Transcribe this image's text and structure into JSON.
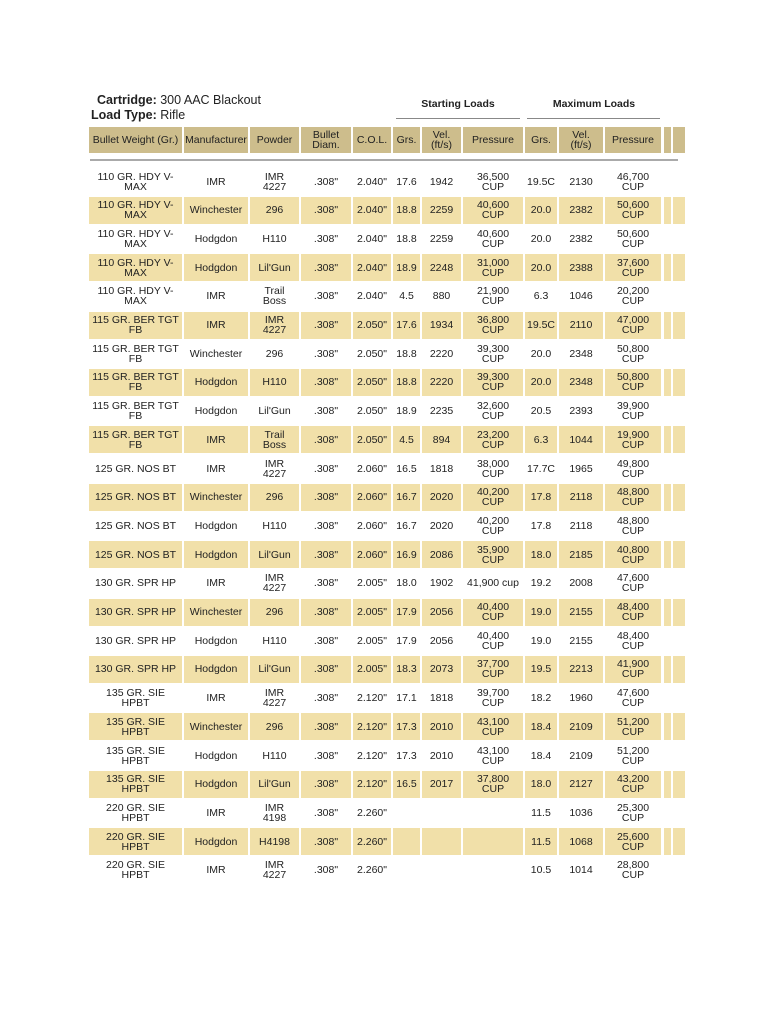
{
  "header": {
    "cartridge_label": "Cartridge:",
    "cartridge": "300 AAC Blackout",
    "load_type_label": "Load Type:",
    "load_type": "Rifle"
  },
  "table": {
    "groups": [
      "Starting Loads",
      "Maximum Loads"
    ],
    "columns": [
      "Bullet Weight (Gr.)",
      "Manufacturer",
      "Powder",
      "Bullet Diam.",
      "C.O.L.",
      "Grs.",
      "Vel. (ft/s)",
      "Pressure",
      "Grs.",
      "Vel. (ft/s)",
      "Pressure"
    ],
    "rows": [
      [
        "110 GR. HDY V-MAX",
        "IMR",
        "IMR 4227",
        ".308\"",
        "2.040\"",
        "17.6",
        "1942",
        "36,500 CUP",
        "19.5C",
        "2130",
        "46,700 CUP"
      ],
      [
        "110 GR. HDY V-MAX",
        "Winchester",
        "296",
        ".308\"",
        "2.040\"",
        "18.8",
        "2259",
        "40,600 CUP",
        "20.0",
        "2382",
        "50,600 CUP"
      ],
      [
        "110 GR. HDY V-MAX",
        "Hodgdon",
        "H110",
        ".308\"",
        "2.040\"",
        "18.8",
        "2259",
        "40,600 CUP",
        "20.0",
        "2382",
        "50,600 CUP"
      ],
      [
        "110 GR. HDY V-MAX",
        "Hodgdon",
        "Lil'Gun",
        ".308\"",
        "2.040\"",
        "18.9",
        "2248",
        "31,000 CUP",
        "20.0",
        "2388",
        "37,600 CUP"
      ],
      [
        "110 GR. HDY V-MAX",
        "IMR",
        "Trail Boss",
        ".308\"",
        "2.040\"",
        "4.5",
        "880",
        "21,900 CUP",
        "6.3",
        "1046",
        "20,200 CUP"
      ],
      [
        "115 GR. BER TGT FB",
        "IMR",
        "IMR 4227",
        ".308\"",
        "2.050\"",
        "17.6",
        "1934",
        "36,800 CUP",
        "19.5C",
        "2110",
        "47,000 CUP"
      ],
      [
        "115 GR. BER TGT FB",
        "Winchester",
        "296",
        ".308\"",
        "2.050\"",
        "18.8",
        "2220",
        "39,300 CUP",
        "20.0",
        "2348",
        "50,800 CUP"
      ],
      [
        "115 GR. BER TGT FB",
        "Hodgdon",
        "H110",
        ".308\"",
        "2.050\"",
        "18.8",
        "2220",
        "39,300 CUP",
        "20.0",
        "2348",
        "50,800 CUP"
      ],
      [
        "115 GR. BER TGT FB",
        "Hodgdon",
        "Lil'Gun",
        ".308\"",
        "2.050\"",
        "18.9",
        "2235",
        "32,600 CUP",
        "20.5",
        "2393",
        "39,900 CUP"
      ],
      [
        "115 GR. BER TGT FB",
        "IMR",
        "Trail Boss",
        ".308\"",
        "2.050\"",
        "4.5",
        "894",
        "23,200 CUP",
        "6.3",
        "1044",
        "19,900 CUP"
      ],
      [
        "125 GR. NOS BT",
        "IMR",
        "IMR 4227",
        ".308\"",
        "2.060\"",
        "16.5",
        "1818",
        "38,000 CUP",
        "17.7C",
        "1965",
        "49,800 CUP"
      ],
      [
        "125 GR. NOS BT",
        "Winchester",
        "296",
        ".308\"",
        "2.060\"",
        "16.7",
        "2020",
        "40,200 CUP",
        "17.8",
        "2118",
        "48,800 CUP"
      ],
      [
        "125 GR. NOS BT",
        "Hodgdon",
        "H110",
        ".308\"",
        "2.060\"",
        "16.7",
        "2020",
        "40,200 CUP",
        "17.8",
        "2118",
        "48,800 CUP"
      ],
      [
        "125 GR. NOS BT",
        "Hodgdon",
        "Lil'Gun",
        ".308\"",
        "2.060\"",
        "16.9",
        "2086",
        "35,900 CUP",
        "18.0",
        "2185",
        "40,800 CUP"
      ],
      [
        "130 GR. SPR HP",
        "IMR",
        "IMR 4227",
        ".308\"",
        "2.005\"",
        "18.0",
        "1902",
        "41,900 cup",
        "19.2",
        "2008",
        "47,600 CUP"
      ],
      [
        "130 GR. SPR HP",
        "Winchester",
        "296",
        ".308\"",
        "2.005\"",
        "17.9",
        "2056",
        "40,400 CUP",
        "19.0",
        "2155",
        "48,400 CUP"
      ],
      [
        "130 GR. SPR HP",
        "Hodgdon",
        "H110",
        ".308\"",
        "2.005\"",
        "17.9",
        "2056",
        "40,400 CUP",
        "19.0",
        "2155",
        "48,400 CUP"
      ],
      [
        "130 GR. SPR HP",
        "Hodgdon",
        "Lil'Gun",
        ".308\"",
        "2.005\"",
        "18.3",
        "2073",
        "37,700 CUP",
        "19.5",
        "2213",
        "41,900 CUP"
      ],
      [
        "135 GR. SIE HPBT",
        "IMR",
        "IMR 4227",
        ".308\"",
        "2.120\"",
        "17.1",
        "1818",
        "39,700 CUP",
        "18.2",
        "1960",
        "47,600 CUP"
      ],
      [
        "135 GR. SIE HPBT",
        "Winchester",
        "296",
        ".308\"",
        "2.120\"",
        "17.3",
        "2010",
        "43,100 CUP",
        "18.4",
        "2109",
        "51,200 CUP"
      ],
      [
        "135 GR. SIE HPBT",
        "Hodgdon",
        "H110",
        ".308\"",
        "2.120\"",
        "17.3",
        "2010",
        "43,100 CUP",
        "18.4",
        "2109",
        "51,200 CUP"
      ],
      [
        "135 GR. SIE HPBT",
        "Hodgdon",
        "Lil'Gun",
        ".308\"",
        "2.120\"",
        "16.5",
        "2017",
        "37,800 CUP",
        "18.0",
        "2127",
        "43,200 CUP"
      ],
      [
        "220 GR. SIE HPBT",
        "IMR",
        "IMR 4198",
        ".308\"",
        "2.260\"",
        null,
        null,
        null,
        "11.5",
        "1036",
        "25,300 CUP"
      ],
      [
        "220 GR. SIE HPBT",
        "Hodgdon",
        "H4198",
        ".308\"",
        "2.260\"",
        null,
        null,
        null,
        "11.5",
        "1068",
        "25,600 CUP"
      ],
      [
        "220 GR. SIE HPBT",
        "IMR",
        "IMR 4227",
        ".308\"",
        "2.260\"",
        null,
        null,
        null,
        "10.5",
        "1014",
        "28,800 CUP"
      ]
    ]
  }
}
